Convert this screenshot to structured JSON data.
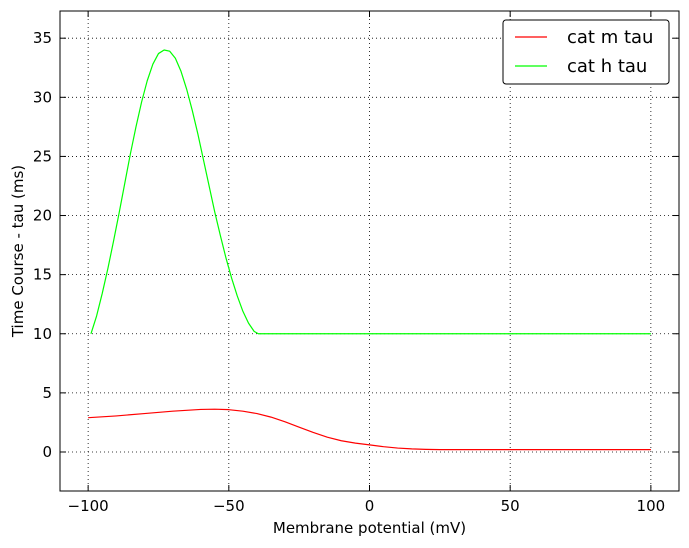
{
  "chart_data": {
    "type": "line",
    "title": "",
    "xlabel": "Membrane potential (mV)",
    "ylabel": "Time Course - tau (ms)",
    "xlim": [
      -110,
      110
    ],
    "ylim": [
      -3.3,
      37.3
    ],
    "xticks": [
      -100,
      -50,
      0,
      50,
      100
    ],
    "xtick_labels": [
      "−100",
      "−50",
      "0",
      "50",
      "100"
    ],
    "yticks": [
      0,
      5,
      10,
      15,
      20,
      25,
      30,
      35
    ],
    "ytick_labels": [
      "0",
      "5",
      "10",
      "15",
      "20",
      "25",
      "30",
      "35"
    ],
    "grid": true,
    "legend_position": "top-right",
    "series": [
      {
        "name": "cat m tau",
        "color": "#ff0000",
        "x": [
          -100,
          -90,
          -80,
          -70,
          -60,
          -55,
          -50,
          -45,
          -40,
          -35,
          -30,
          -25,
          -20,
          -15,
          -10,
          -5,
          0,
          5,
          10,
          15,
          20,
          25,
          30,
          40,
          50,
          60,
          70,
          80,
          90,
          100
        ],
        "y": [
          2.9,
          3.05,
          3.25,
          3.45,
          3.6,
          3.62,
          3.58,
          3.45,
          3.25,
          2.95,
          2.55,
          2.1,
          1.65,
          1.25,
          0.95,
          0.75,
          0.6,
          0.45,
          0.33,
          0.26,
          0.22,
          0.2,
          0.2,
          0.2,
          0.2,
          0.2,
          0.2,
          0.2,
          0.2,
          0.2
        ]
      },
      {
        "name": "cat h tau",
        "color": "#00ff00",
        "x": [
          -99,
          -97,
          -95,
          -93,
          -91,
          -89,
          -87,
          -85,
          -83,
          -81,
          -79,
          -77,
          -75,
          -73,
          -71,
          -69,
          -67,
          -65,
          -63,
          -61,
          -59,
          -57,
          -55,
          -53,
          -51,
          -49,
          -47,
          -45,
          -43,
          -41,
          -39.5,
          -39,
          -30,
          -20,
          -10,
          0,
          10,
          20,
          30,
          40,
          50,
          60,
          70,
          80,
          90,
          100
        ],
        "y": [
          10.0,
          11.5,
          13.4,
          15.5,
          17.8,
          20.2,
          22.7,
          25.2,
          27.5,
          29.6,
          31.4,
          32.8,
          33.7,
          34.0,
          33.9,
          33.3,
          32.2,
          30.7,
          28.9,
          26.9,
          24.7,
          22.5,
          20.3,
          18.3,
          16.4,
          14.7,
          13.2,
          11.9,
          10.9,
          10.2,
          10.0,
          10.0,
          10.0,
          10.0,
          10.0,
          10.0,
          10.0,
          10.0,
          10.0,
          10.0,
          10.0,
          10.0,
          10.0,
          10.0,
          10.0,
          10.0
        ]
      }
    ]
  }
}
